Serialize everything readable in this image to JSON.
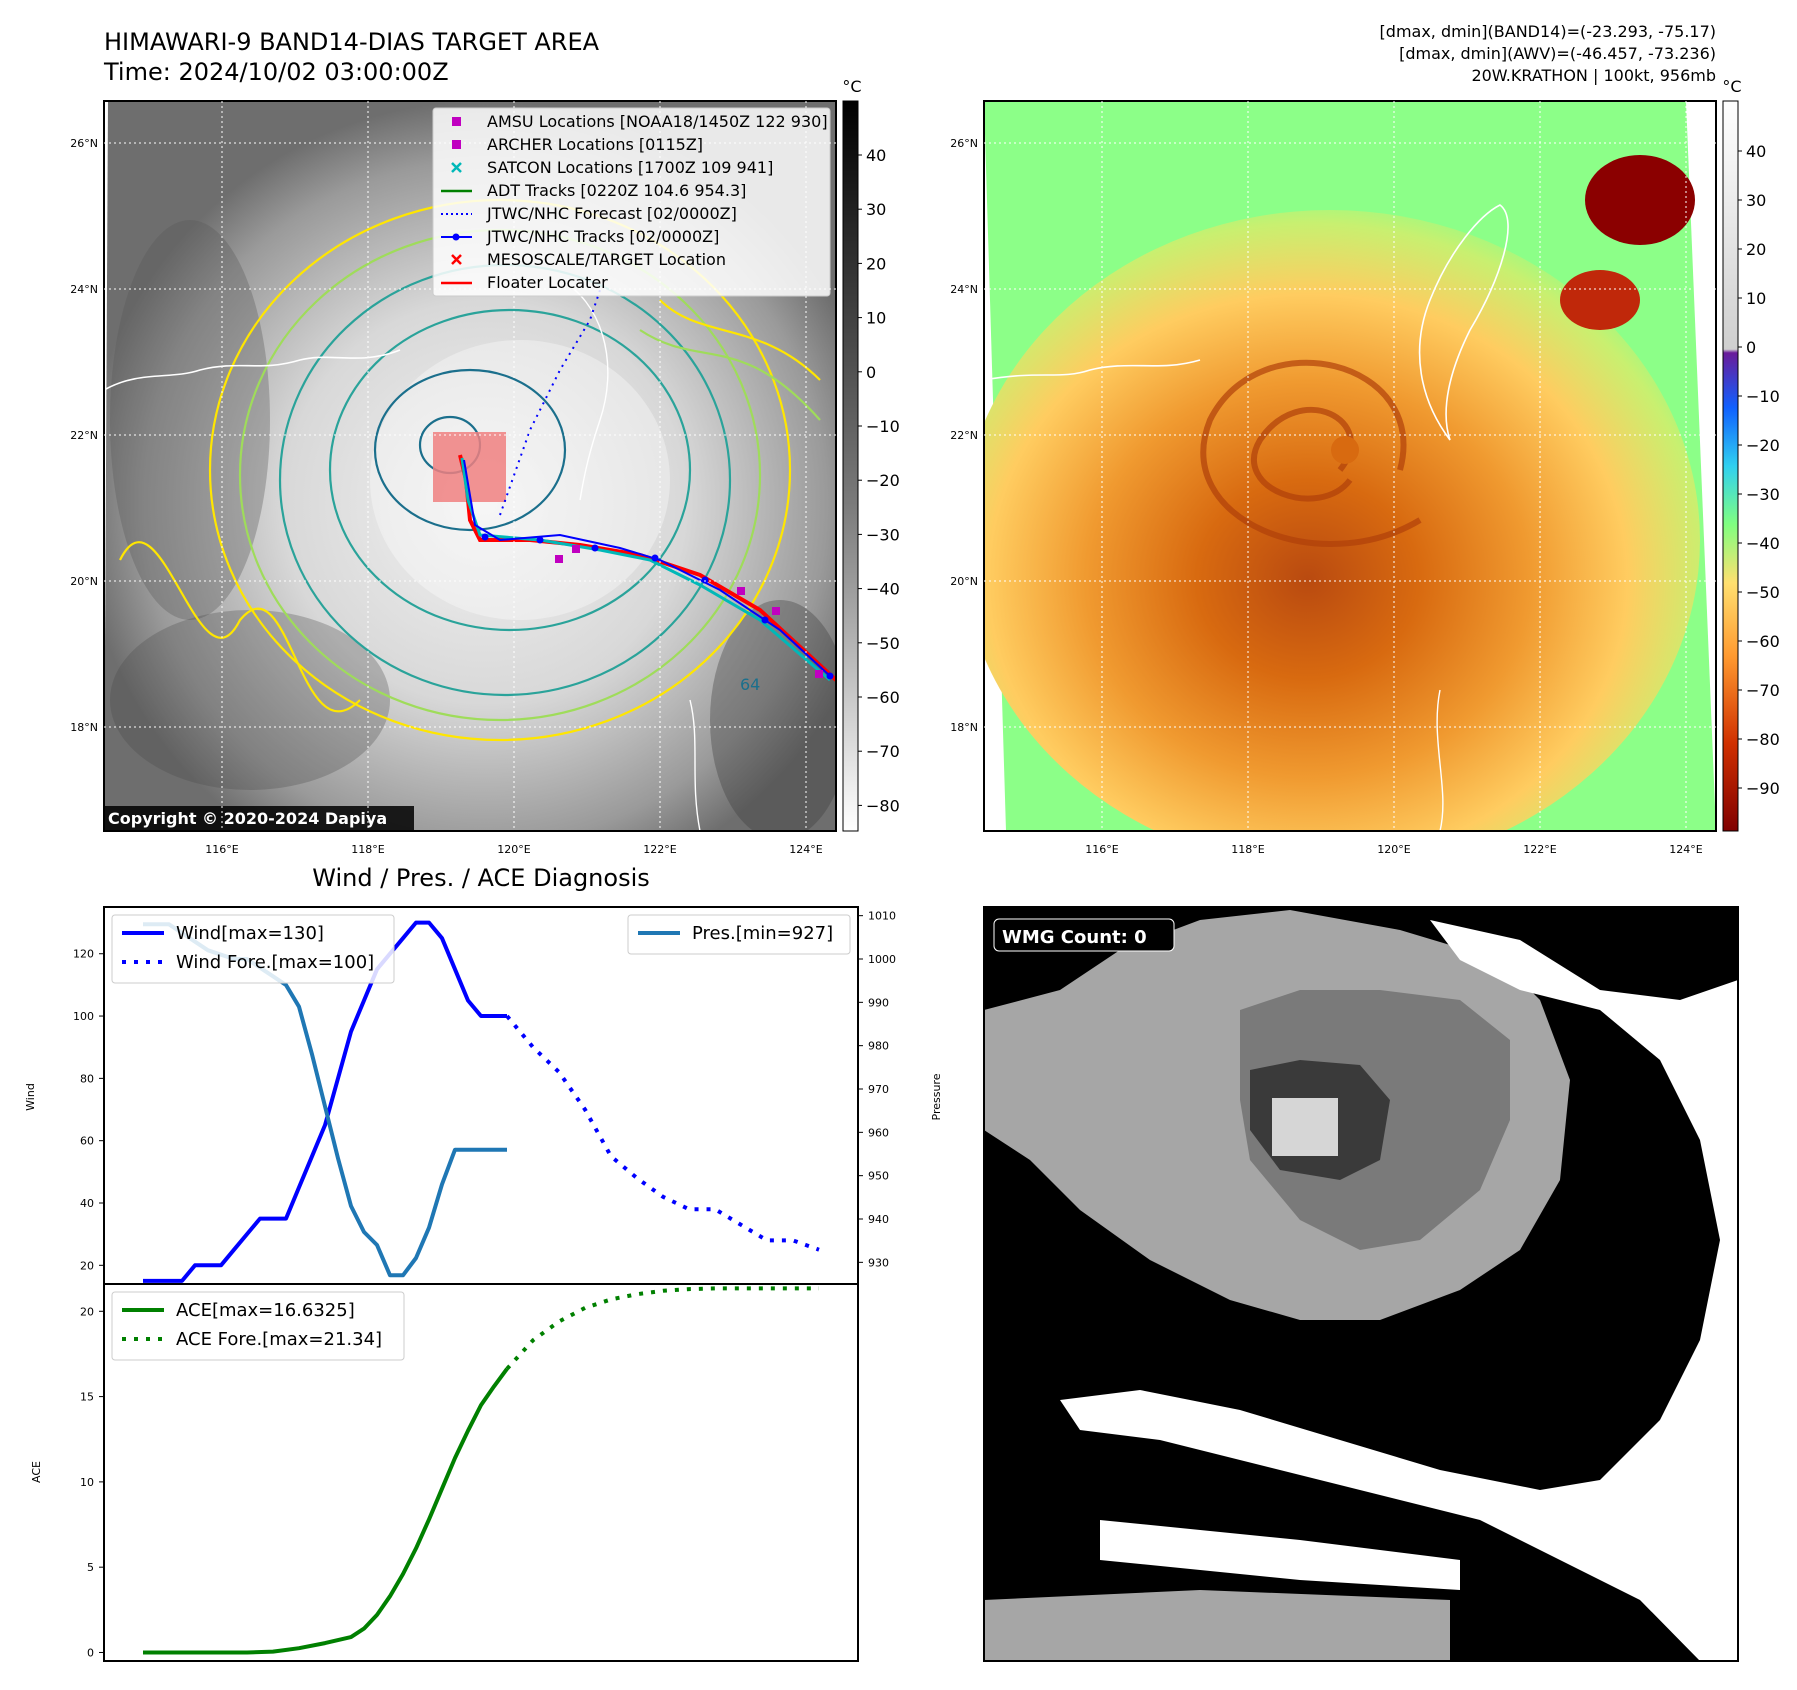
{
  "header": {
    "title_line1": "HIMAWARI-9 BAND14-DIAS TARGET AREA",
    "title_line2": "Time: 2024/10/02 03:00:00Z",
    "info_line1": "[dmax, dmin](BAND14)=(-23.293, -75.17)",
    "info_line2": "[dmax, dmin](AWV)=(-46.457, -73.236)",
    "info_line3": "20W.KRATHON | 100kt, 956mb"
  },
  "maps": {
    "lat_labels": [
      "26°N",
      "24°N",
      "22°N",
      "20°N",
      "18°N"
    ],
    "lon_labels": [
      "116°E",
      "118°E",
      "120°E",
      "122°E",
      "124°E"
    ],
    "copyright": "Copyright © 2020-2024 Dapiya",
    "contour_label": "64",
    "legend": [
      {
        "label": "AMSU Locations [NOAA18/1450Z 122 930]",
        "color": "#c000c0",
        "marker": "square"
      },
      {
        "label": "ARCHER Locations [0115Z]",
        "color": "#c000c0",
        "marker": "square"
      },
      {
        "label": "SATCON Locations [1700Z 109 941]",
        "color": "#00b8b8",
        "marker": "x"
      },
      {
        "label": "ADT Tracks [0220Z 104.6 954.3]",
        "color": "#008000",
        "marker": "line"
      },
      {
        "label": "JTWC/NHC Forecast [02/0000Z]",
        "color": "#0000ff",
        "marker": "dotted"
      },
      {
        "label": "JTWC/NHC Tracks [02/0000Z]",
        "color": "#0000ff",
        "marker": "line-dot"
      },
      {
        "label": "MESOSCALE/TARGET Location",
        "color": "#ff0000",
        "marker": "x"
      },
      {
        "label": "Floater Locater",
        "color": "#ff0000",
        "marker": "line"
      }
    ],
    "unit": "°C",
    "gray_colorbar_ticks": [
      "40",
      "30",
      "20",
      "10",
      "0",
      "−10",
      "−20",
      "−30",
      "−40",
      "−50",
      "−60",
      "−70",
      "−80"
    ],
    "color_colorbar_ticks": [
      "40",
      "30",
      "20",
      "10",
      "0",
      "−10",
      "−20",
      "−30",
      "−40",
      "−50",
      "−60",
      "−70",
      "−80",
      "−90"
    ]
  },
  "wmg": {
    "label": "WMG Count: 0"
  },
  "chart_data": [
    {
      "type": "line",
      "title": "Wind / Pres. / ACE Diagnosis",
      "ylabel": "Wind",
      "y2label": "Pressure",
      "ylim": [
        14,
        135
      ],
      "y2lim": [
        925,
        1012
      ],
      "yticks": [
        20,
        40,
        60,
        80,
        100,
        120
      ],
      "y2ticks": [
        930,
        940,
        950,
        960,
        970,
        980,
        990,
        1000,
        1010
      ],
      "series": [
        {
          "name": "Wind[max=130]",
          "color": "#0000ff",
          "style": "solid",
          "x": [
            0,
            1,
            2,
            3,
            4,
            5,
            6,
            7,
            8,
            9,
            10,
            11,
            12,
            13,
            14,
            15,
            16,
            17,
            18,
            19,
            20,
            21,
            22,
            23,
            24,
            25,
            26,
            27,
            28
          ],
          "values": [
            15,
            15,
            15,
            15,
            20,
            20,
            20,
            25,
            30,
            35,
            35,
            35,
            45,
            55,
            65,
            80,
            95,
            105,
            115,
            120,
            125,
            130,
            130,
            125,
            115,
            105,
            100,
            100,
            100
          ]
        },
        {
          "name": "Wind Fore.[max=100]",
          "color": "#0000ff",
          "style": "dotted",
          "x": [
            28,
            30,
            32,
            34,
            36,
            38,
            40,
            42,
            44,
            46,
            48,
            50,
            52
          ],
          "values": [
            100,
            90,
            82,
            70,
            55,
            48,
            42,
            38,
            38,
            33,
            28,
            28,
            25
          ]
        },
        {
          "name": "Pres.[min=927]",
          "color": "#1f77b4",
          "style": "solid",
          "axis": "right",
          "x": [
            0,
            1,
            2,
            3,
            4,
            5,
            6,
            7,
            8,
            9,
            10,
            11,
            12,
            13,
            14,
            15,
            16,
            17,
            18,
            19,
            20,
            21,
            22,
            23,
            24,
            25,
            26,
            27,
            28
          ],
          "values": [
            1008,
            1008,
            1008,
            1006,
            1004,
            1002,
            1001,
            1000,
            1000,
            998,
            996,
            994,
            989,
            978,
            966,
            954,
            943,
            937,
            934,
            927,
            927,
            931,
            938,
            948,
            956,
            956,
            956,
            956,
            956
          ]
        }
      ]
    },
    {
      "type": "line",
      "ylabel": "ACE",
      "ylim": [
        -0.5,
        21.6
      ],
      "yticks": [
        0,
        5,
        10,
        15,
        20
      ],
      "series": [
        {
          "name": "ACE[max=16.6325]",
          "color": "#008000",
          "style": "solid",
          "x": [
            0,
            2,
            4,
            6,
            8,
            10,
            12,
            14,
            16,
            17,
            18,
            19,
            20,
            21,
            22,
            23,
            24,
            25,
            26,
            27,
            28
          ],
          "values": [
            0,
            0,
            0,
            0,
            0,
            0.05,
            0.25,
            0.55,
            0.9,
            1.4,
            2.2,
            3.3,
            4.6,
            6.1,
            7.8,
            9.6,
            11.4,
            13.0,
            14.5,
            15.6,
            16.63
          ]
        },
        {
          "name": "ACE Fore.[max=21.34]",
          "color": "#008000",
          "style": "dotted",
          "x": [
            28,
            30,
            32,
            34,
            36,
            38,
            40,
            42,
            44,
            46,
            48,
            50,
            52
          ],
          "values": [
            16.63,
            18.3,
            19.4,
            20.2,
            20.7,
            21.0,
            21.2,
            21.3,
            21.34,
            21.34,
            21.34,
            21.34,
            21.34
          ]
        }
      ]
    }
  ]
}
